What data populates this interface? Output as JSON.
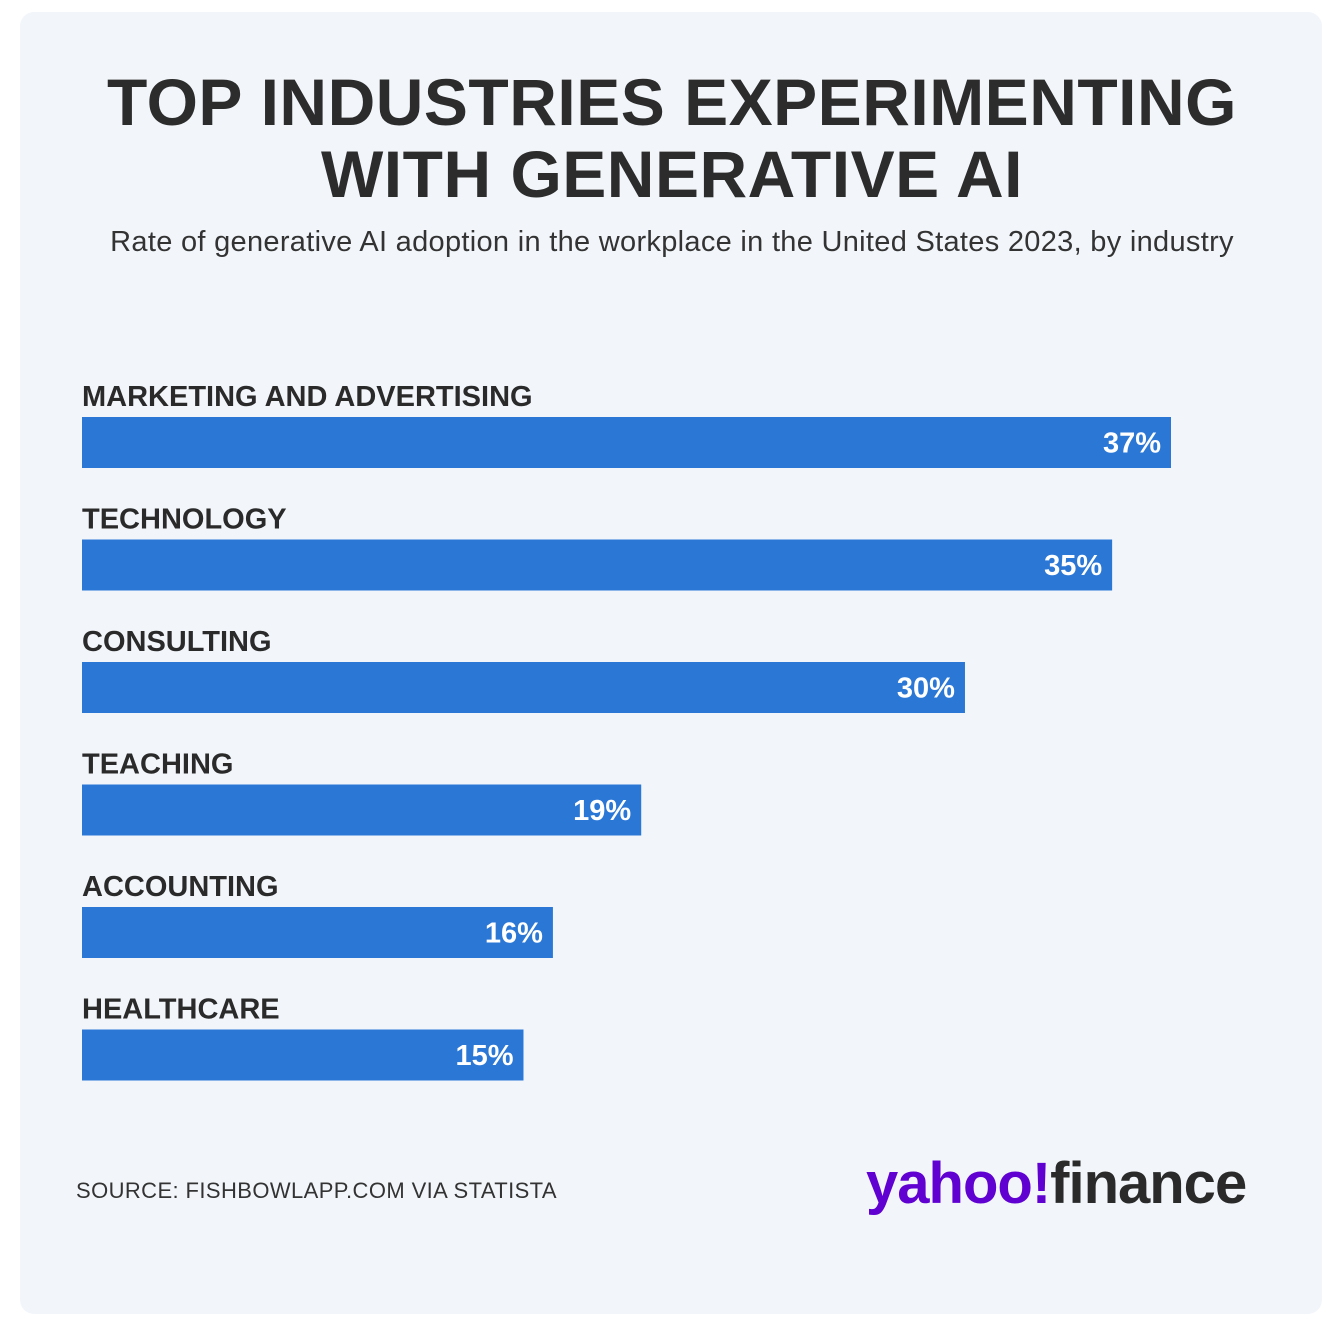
{
  "title_line1": "TOP INDUSTRIES EXPERIMENTING",
  "title_line2": "WITH GENERATIVE AI",
  "subtitle": "Rate of generative AI adoption in the workplace in the United States 2023, by industry",
  "source": "SOURCE: FISHBOWLAPP.COM VIA STATISTA",
  "logo": {
    "part1": "yahoo",
    "mark": "!",
    "part2": "finance"
  },
  "colors": {
    "bar": "#2b77d6",
    "title": "#2c2c2c",
    "logo_purple": "#6001d2",
    "background": "#f2f6fa"
  },
  "chart_data": {
    "type": "bar",
    "orientation": "horizontal",
    "title": "TOP INDUSTRIES EXPERIMENTING WITH GENERATIVE AI",
    "categories": [
      "MARKETING AND ADVERTISING",
      "TECHNOLOGY",
      "CONSULTING",
      "TEACHING",
      "ACCOUNTING",
      "HEALTHCARE"
    ],
    "values": [
      37,
      35,
      30,
      19,
      16,
      15
    ],
    "value_labels": [
      "37%",
      "35%",
      "30%",
      "19%",
      "16%",
      "15%"
    ],
    "unit": "%",
    "xlim": [
      0,
      37
    ],
    "grid": false,
    "legend": "none"
  }
}
